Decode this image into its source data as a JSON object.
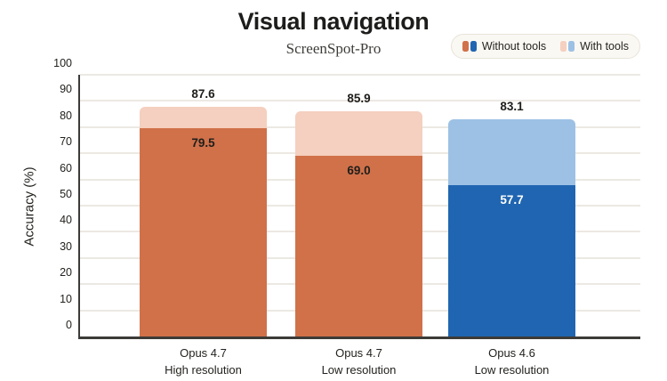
{
  "header": {
    "title": "Visual navigation",
    "subtitle": "ScreenSpot-Pro"
  },
  "legend": {
    "items": [
      {
        "label": "Without tools",
        "swatches": [
          "#d0714a",
          "#2065b1"
        ]
      },
      {
        "label": "With tools",
        "swatches": [
          "#f5cfbf",
          "#9cc1e5"
        ]
      }
    ]
  },
  "chart_data": {
    "type": "bar",
    "title": "Visual navigation",
    "subtitle": "ScreenSpot-Pro",
    "ylabel": "Accuracy (%)",
    "ylim": [
      0,
      100
    ],
    "yticks": [
      0,
      10,
      20,
      30,
      40,
      50,
      60,
      70,
      80,
      90,
      100
    ],
    "grid": true,
    "legend_position": "top-right",
    "categories": [
      "Opus 4.7 High resolution",
      "Opus 4.7 Low resolution",
      "Opus 4.6 Low resolution"
    ],
    "series": [
      {
        "name": "Without tools",
        "values": [
          79.5,
          69.0,
          57.7
        ]
      },
      {
        "name": "With tools",
        "values": [
          87.6,
          85.9,
          83.1
        ]
      }
    ],
    "bars": [
      {
        "label_line1": "Opus 4.7",
        "label_line2": "High resolution",
        "with_value": 87.6,
        "with_display": "87.6",
        "without_value": 79.5,
        "without_display": "79.5",
        "color_with": "#f5cfbf",
        "color_without": "#d0714a",
        "inner_text_color": "#1f1e1b"
      },
      {
        "label_line1": "Opus 4.7",
        "label_line2": "Low resolution",
        "with_value": 85.9,
        "with_display": "85.9",
        "without_value": 69.0,
        "without_display": "69.0",
        "color_with": "#f5cfbf",
        "color_without": "#d0714a",
        "inner_text_color": "#1f1e1b"
      },
      {
        "label_line1": "Opus 4.6",
        "label_line2": "Low resolution",
        "with_value": 83.1,
        "with_display": "83.1",
        "without_value": 57.7,
        "without_display": "57.7",
        "color_with": "#9cc1e5",
        "color_without": "#2065b1",
        "inner_text_color": "#ffffff"
      }
    ]
  },
  "colors": {
    "axis": "#3c3b38",
    "gridline": "#ece9e3",
    "text": "#1f1e1b",
    "legend_bg": "#faf8f3",
    "legend_border": "#e8e4da"
  }
}
